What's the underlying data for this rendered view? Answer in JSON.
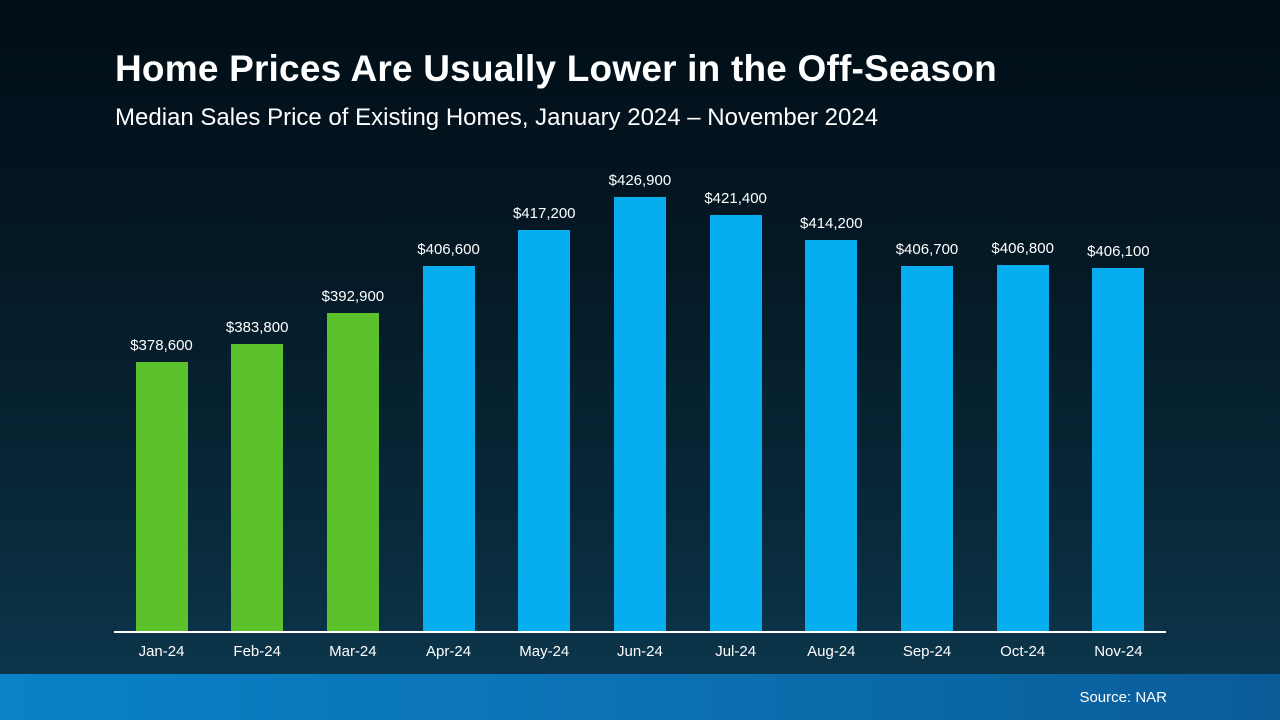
{
  "header": {
    "title": "Home Prices Are Usually Lower in the Off-Season",
    "subtitle": "Median Sales Price of Existing Homes, January 2024 – November 2024"
  },
  "footer": {
    "source": "Source: NAR"
  },
  "colors": {
    "green": "#5CC22B",
    "blue": "#06AEEF",
    "axis": "#ffffff",
    "background_top": "#020d16",
    "background_bottom": "#0d3950",
    "footer_blue": "#0a82c6"
  },
  "chart_data": {
    "type": "bar",
    "title": "Median Sales Price of Existing Homes, January 2024 – November 2024",
    "xlabel": "",
    "ylabel": "",
    "categories": [
      "Jan-24",
      "Feb-24",
      "Mar-24",
      "Apr-24",
      "May-24",
      "Jun-24",
      "Jul-24",
      "Aug-24",
      "Sep-24",
      "Oct-24",
      "Nov-24"
    ],
    "values": [
      378600,
      383800,
      392900,
      406600,
      417200,
      426900,
      421400,
      414200,
      406700,
      406800,
      406100
    ],
    "labels": [
      "$378,600",
      "$383,800",
      "$392,900",
      "$406,600",
      "$417,200",
      "$426,900",
      "$421,400",
      "$414,200",
      "$406,700",
      "$406,800",
      "$406,100"
    ],
    "bar_colors": [
      "green",
      "green",
      "green",
      "blue",
      "blue",
      "blue",
      "blue",
      "blue",
      "blue",
      "blue",
      "blue"
    ],
    "ylim": [
      300000,
      430000
    ],
    "grid": false,
    "legend": "none"
  }
}
